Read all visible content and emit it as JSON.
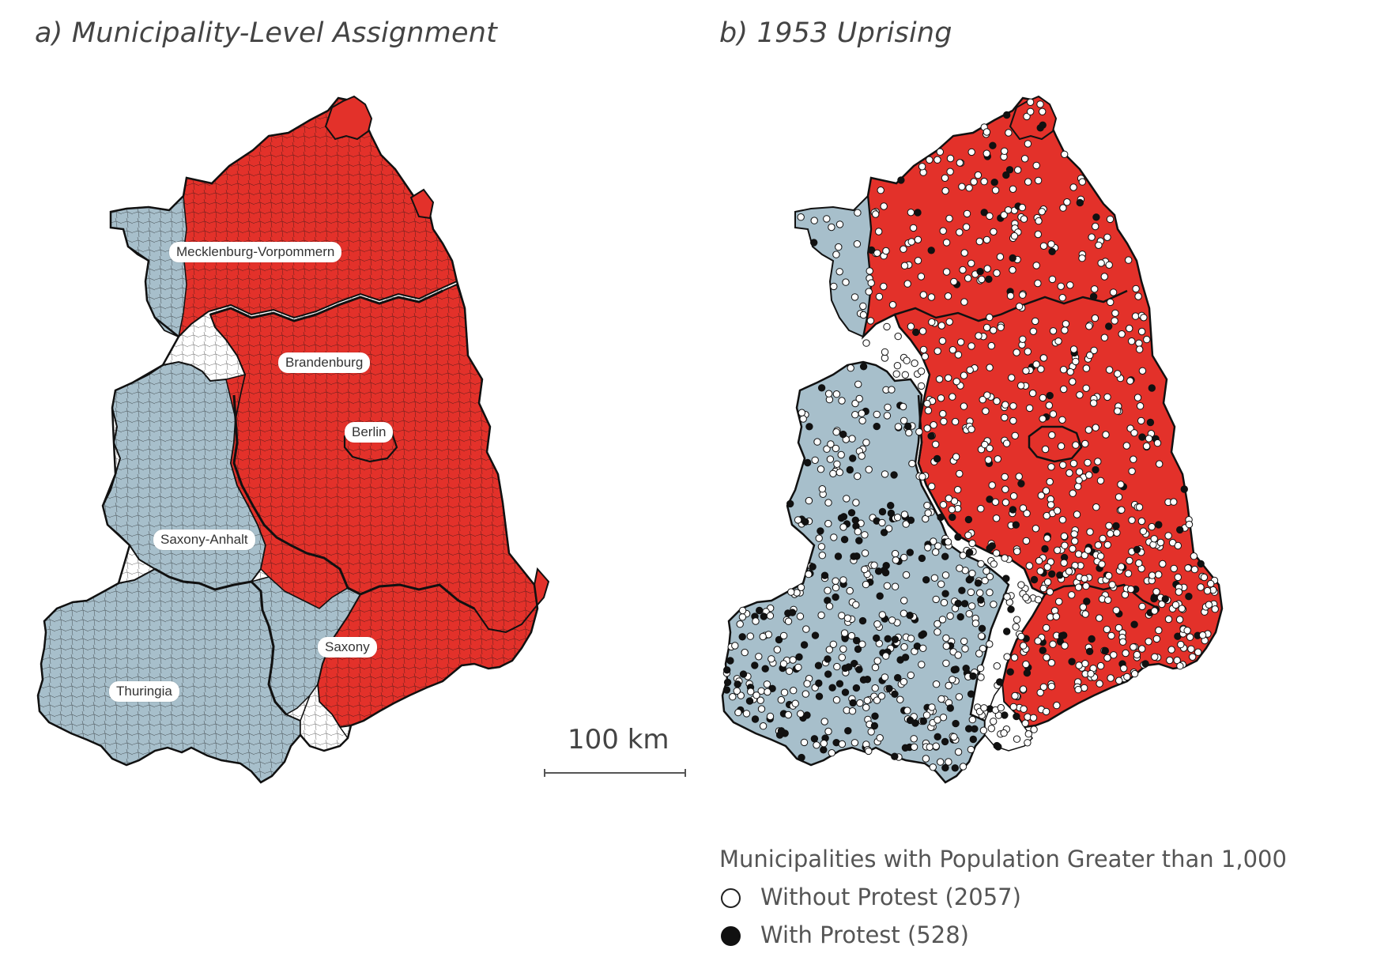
{
  "panels": {
    "a_title": "a) Municipality-Level Assignment",
    "b_title": "b) 1953 Uprising"
  },
  "state_labels": {
    "mecklenburg": "Mecklenburg-Vorpommern",
    "brandenburg": "Brandenburg",
    "berlin": "Berlin",
    "saxony_anhalt": "Saxony-Anhalt",
    "saxony": "Saxony",
    "thuringia": "Thuringia"
  },
  "scale_bar": {
    "label": "100 km"
  },
  "legend": {
    "title": "Municipalities with Population Greater than 1,000",
    "without_protest": "Without Protest (2057)",
    "with_protest": "With Protest (528)"
  },
  "colors": {
    "red_assignment": "#e3312a",
    "blue_assignment": "#a7bfcb",
    "unassigned": "#ffffff",
    "border": "#1a1a1a"
  }
}
